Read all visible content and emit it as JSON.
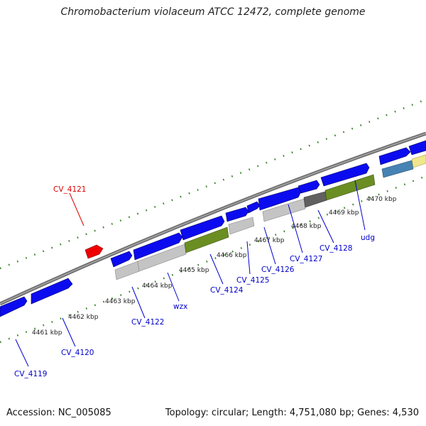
{
  "title": "Chromobacterium violaceum ATCC 12472, complete genome",
  "footer": {
    "accession": "Accession: NC_005085",
    "summary": "Topology: circular; Length: 4,751,080 bp; Genes: 4,530"
  },
  "colors": {
    "backbone": "#808080",
    "tick": "#2e7d1e",
    "gene_label": "#0000cc",
    "rna_label": "#dd0000",
    "cds": "#0b0bef",
    "rna": "#ee0000",
    "olive": "#6b8e23",
    "gray": "#c0c0c0",
    "dark": "#606060",
    "steel": "#4682b4",
    "khaki": "#f0e68c",
    "scale_text": "#222222"
  },
  "scale_labels": [
    "4461 kbp",
    "4462 kbp",
    "4463 kbp",
    "4464 kbp",
    "4465 kbp",
    "4466 kbp",
    "4467 kbp",
    "4468 kbp",
    "4469 kbp",
    "4470 kbp"
  ],
  "gene_labels": [
    {
      "id": "cv4119",
      "text": "CV_4119",
      "kind": "gene"
    },
    {
      "id": "cv4120",
      "text": "CV_4120",
      "kind": "gene"
    },
    {
      "id": "cv4121",
      "text": "CV_4121",
      "kind": "rna"
    },
    {
      "id": "cv4122",
      "text": "CV_4122",
      "kind": "gene"
    },
    {
      "id": "wzx",
      "text": "wzx",
      "kind": "gene"
    },
    {
      "id": "cv4124",
      "text": "CV_4124",
      "kind": "gene"
    },
    {
      "id": "cv4125",
      "text": "CV_4125",
      "kind": "gene"
    },
    {
      "id": "cv4126",
      "text": "CV_4126",
      "kind": "gene"
    },
    {
      "id": "cv4127",
      "text": "CV_4127",
      "kind": "gene"
    },
    {
      "id": "cv4128",
      "text": "CV_4128",
      "kind": "gene"
    },
    {
      "id": "udg",
      "text": "udg",
      "kind": "gene"
    }
  ]
}
